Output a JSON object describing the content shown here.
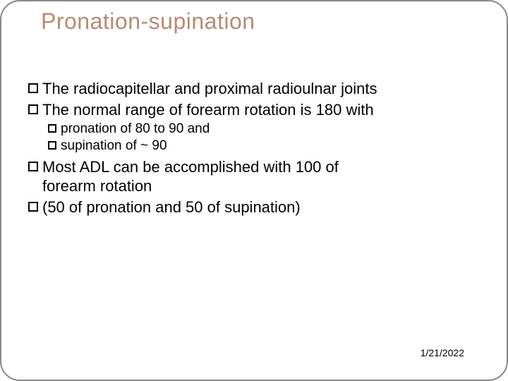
{
  "title": "Pronation-supination",
  "lines": {
    "l1a": "The radiocapitellar and proximal radioulnar joints",
    "l1b": "The normal range of forearm rotation is 180 with",
    "l2a": "pronation of 80 to 90 and",
    "l2b": "supination of ~ 90",
    "l1c_a": "Most ADL can be accomplished with  100 of",
    "l1c_b": "forearm rotation",
    "l1d": "(50 of pronation and 50 of supination)"
  },
  "date": "1/21/2022",
  "colors": {
    "title": "#b88a72",
    "text": "#000000",
    "border": "#888888",
    "background": "#ffffff"
  },
  "typography": {
    "title_fontsize": 32,
    "l1_fontsize": 22,
    "l2_fontsize": 19,
    "date_fontsize": 14
  }
}
